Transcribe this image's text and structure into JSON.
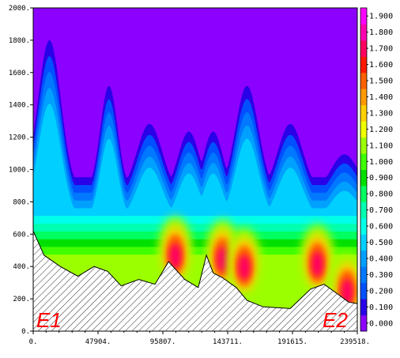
{
  "chart_data": {
    "type": "filled-contour",
    "title": "",
    "xlabel": "",
    "ylabel": "",
    "xlim": [
      0,
      239518
    ],
    "ylim": [
      0,
      2000
    ],
    "x_tick_labels": [
      "0.",
      "47904.",
      "95807.",
      "143711.",
      "191615.",
      "239518."
    ],
    "y_tick_labels": [
      "0.",
      "200.",
      "400.",
      "600.",
      "800.",
      "1000.",
      "1200.",
      "1400.",
      "1600.",
      "1800.",
      "2000."
    ],
    "colorbar": {
      "labels": [
        "0.000",
        "0.100",
        "0.200",
        "0.300",
        "0.400",
        "0.500",
        "0.600",
        "0.700",
        "0.800",
        "0.900",
        "1.000",
        "1.100",
        "1.200",
        "1.300",
        "1.400",
        "1.500",
        "1.600",
        "1.700",
        "1.800",
        "1.900"
      ],
      "colors": [
        "#8b00ff",
        "#2a00e8",
        "#0050ff",
        "#0078ff",
        "#00a0ff",
        "#00cfff",
        "#00ffe8",
        "#00ffb0",
        "#00ff60",
        "#00e000",
        "#40ff00",
        "#9cff00",
        "#f0ff00",
        "#ffd000",
        "#ff9a00",
        "#ff6000",
        "#ff1800",
        "#ff0060",
        "#ff00b0",
        "#ff00ff"
      ]
    },
    "terrain": {
      "x": [
        0,
        8000,
        20000,
        33000,
        45000,
        55000,
        65000,
        78000,
        90000,
        100000,
        112000,
        122000,
        128000,
        133000,
        140000,
        150000,
        158000,
        170000,
        190000,
        205000,
        215000,
        225000,
        233000,
        239518
      ],
      "y": [
        620,
        470,
        400,
        340,
        400,
        370,
        280,
        320,
        290,
        430,
        320,
        270,
        470,
        360,
        330,
        270,
        190,
        150,
        140,
        260,
        290,
        230,
        180,
        170
      ]
    },
    "field_ridges": [
      {
        "x": 12000,
        "top": 1900,
        "inner_top": 700,
        "width": 12000
      },
      {
        "x": 56000,
        "top": 1600,
        "inner_top": 850,
        "width": 9000
      },
      {
        "x": 86000,
        "top": 1350,
        "inner_top": 900,
        "width": 13000
      },
      {
        "x": 115000,
        "top": 1300,
        "inner_top": 950,
        "width": 11000
      },
      {
        "x": 133000,
        "top": 1300,
        "inner_top": 850,
        "width": 10000
      },
      {
        "x": 158000,
        "top": 1600,
        "inner_top": 1000,
        "width": 12000
      },
      {
        "x": 190000,
        "top": 1350,
        "inner_top": 700,
        "width": 13000
      },
      {
        "x": 230000,
        "top": 1150,
        "inner_top": 800,
        "width": 14000
      }
    ],
    "hotspots": [
      {
        "x": 105000,
        "y": 450,
        "value": 1.9
      },
      {
        "x": 140000,
        "y": 430,
        "value": 1.75
      },
      {
        "x": 156000,
        "y": 380,
        "value": 1.5
      },
      {
        "x": 210000,
        "y": 400,
        "value": 1.75
      },
      {
        "x": 232000,
        "y": 230,
        "value": 1.9
      }
    ],
    "corner_labels": {
      "left": "E1",
      "right": "E2"
    }
  }
}
